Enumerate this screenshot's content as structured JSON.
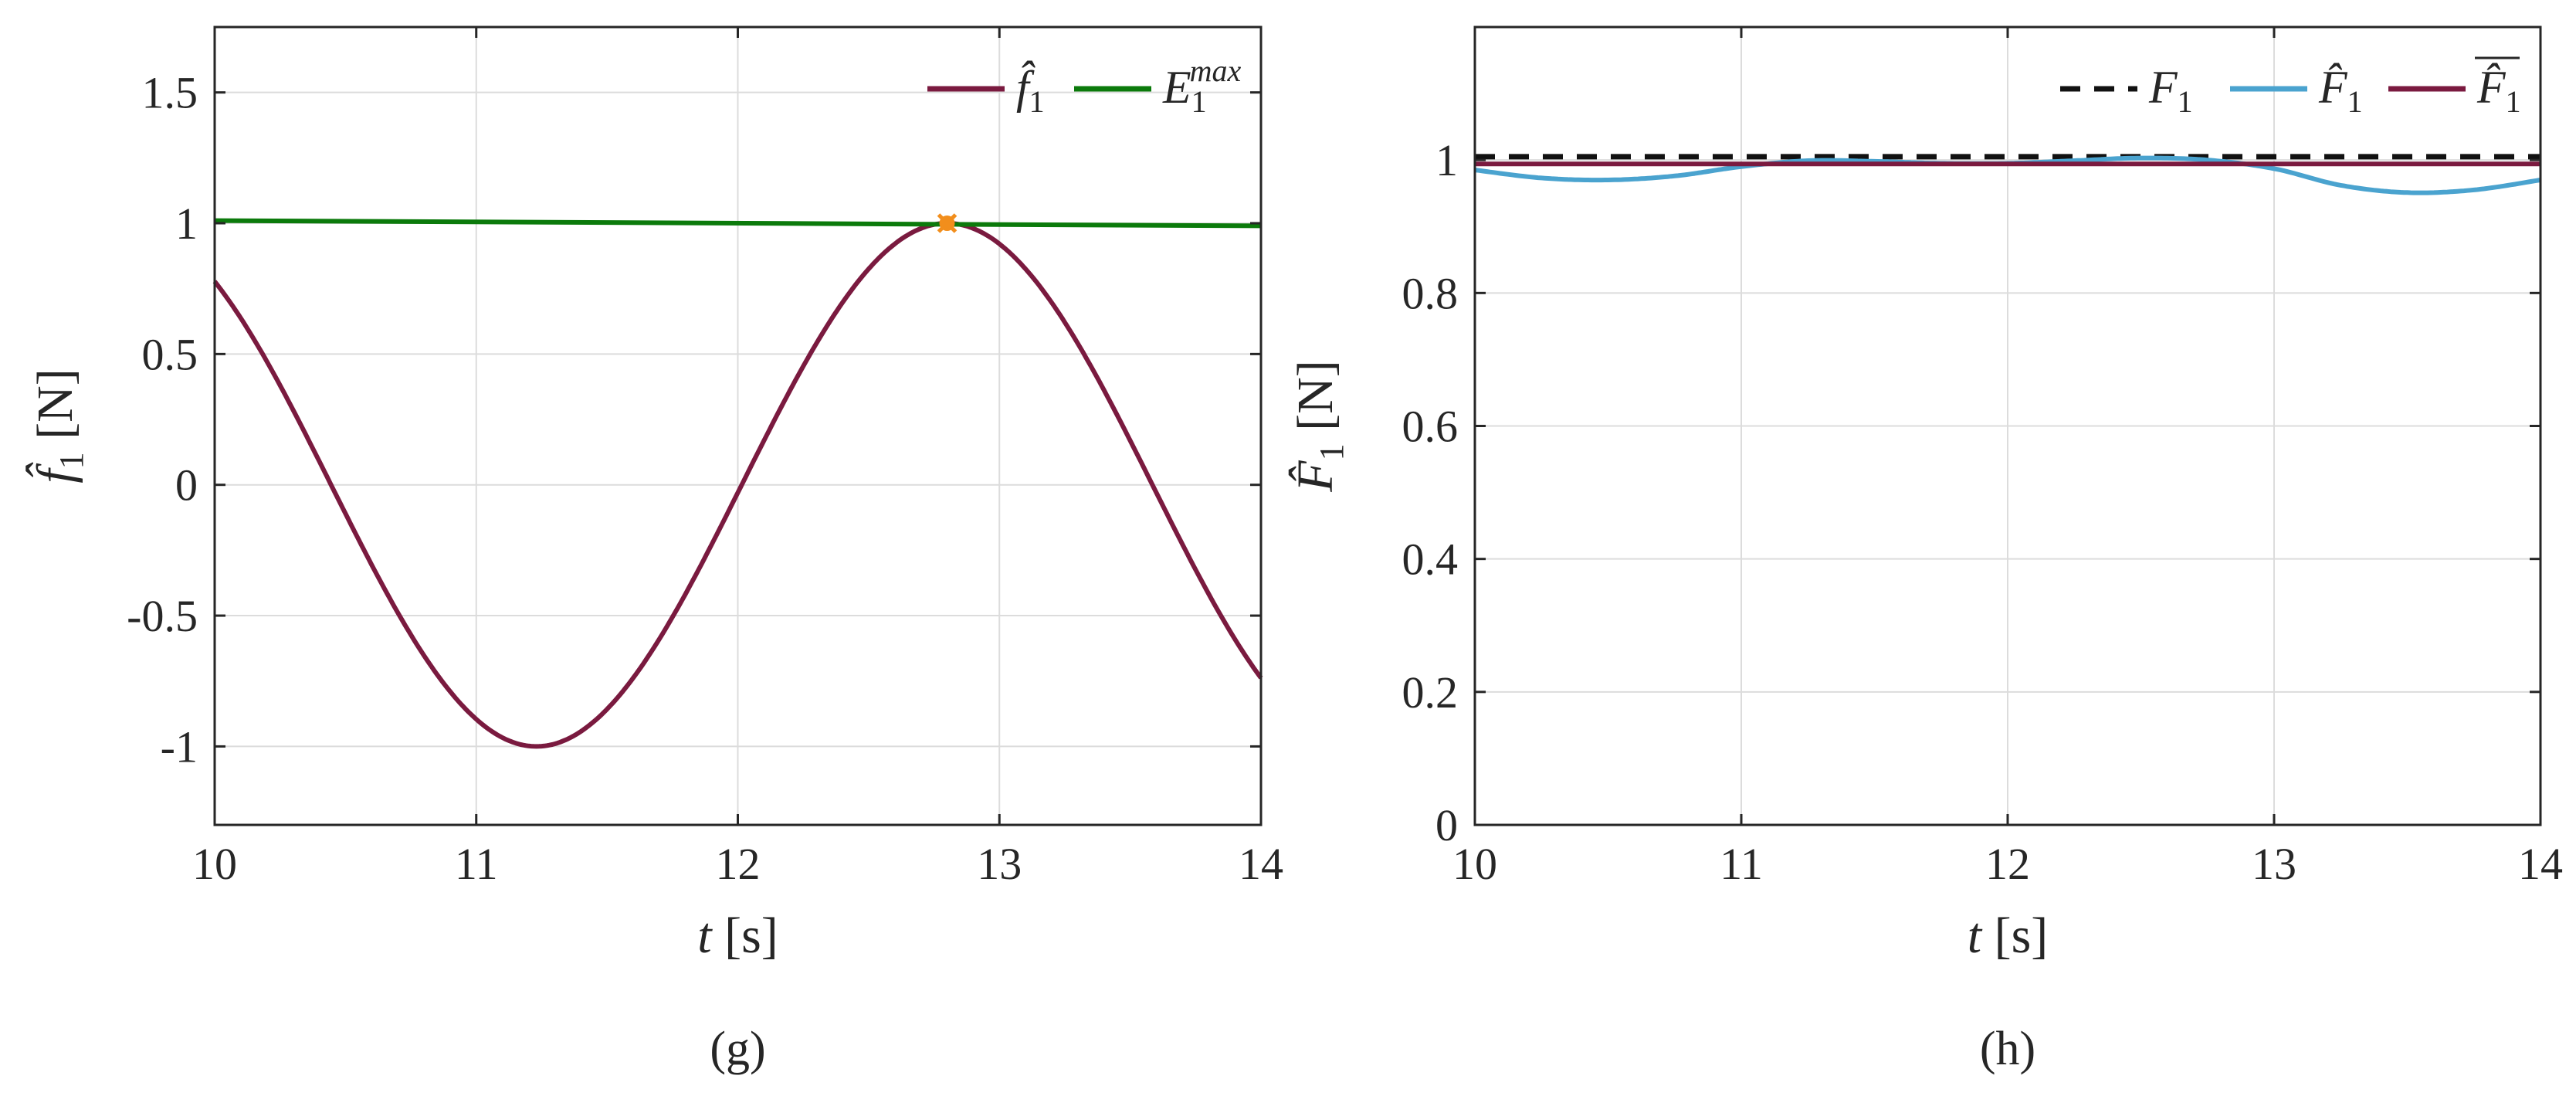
{
  "chart_data": [
    {
      "type": "line",
      "xlabel_var": "t",
      "xlabel_unit": "[s]",
      "ylabel_sym": "f̂",
      "ylabel_sub": "1",
      "ylabel_unit": "[N]",
      "xlim": [
        10,
        14
      ],
      "ylim": [
        -1.3,
        1.75
      ],
      "xticks": [
        10,
        11,
        12,
        13,
        14
      ],
      "xtick_labels": [
        "10",
        "11",
        "12",
        "13",
        "14"
      ],
      "yticks": [
        1.5,
        1,
        0.5,
        0,
        -0.5,
        -1
      ],
      "ytick_labels": [
        "1.5",
        "1",
        "0.5",
        "0",
        "-0.5",
        "-1"
      ],
      "grid": true,
      "legend_position": "top-right",
      "series": [
        {
          "name": "f̂1",
          "legend_main": "f̂",
          "legend_sub": "1",
          "legend_sup": "",
          "color": "#7a1a3f",
          "kind": "sine",
          "amplitude": 1.0,
          "period": 3.14,
          "peak_t": 12.8
        },
        {
          "name": "E1max",
          "legend_main": "E",
          "legend_sub": "1",
          "legend_sup": "max",
          "color": "#0b7a0b",
          "kind": "linear",
          "x": [
            10,
            14
          ],
          "y": [
            1.01,
            0.99
          ]
        }
      ],
      "marker": {
        "x": 12.8,
        "y": 1.0,
        "color": "#f28e1c"
      },
      "caption": "(g)"
    },
    {
      "type": "line",
      "xlabel_var": "t",
      "xlabel_unit": "[s]",
      "ylabel_sym": "F̂",
      "ylabel_sub": "1",
      "ylabel_unit": "[N]",
      "xlim": [
        10,
        14
      ],
      "ylim": [
        0,
        1.2
      ],
      "xticks": [
        10,
        11,
        12,
        13,
        14
      ],
      "xtick_labels": [
        "10",
        "11",
        "12",
        "13",
        "14"
      ],
      "yticks": [
        1,
        0.8,
        0.6,
        0.4,
        0.2,
        0
      ],
      "ytick_labels": [
        "1",
        "0.8",
        "0.6",
        "0.4",
        "0.2",
        "0"
      ],
      "grid": true,
      "legend_position": "top-right",
      "series": [
        {
          "name": "F1",
          "legend_main": "F",
          "legend_sub": "1",
          "color": "#111111",
          "dash": true,
          "kind": "linear",
          "x": [
            10,
            14
          ],
          "y": [
            1.005,
            1.005
          ]
        },
        {
          "name": "F̂1",
          "legend_main": "F̂",
          "legend_sub": "1",
          "color": "#4aa3cf",
          "kind": "points",
          "x": [
            10,
            10.25,
            10.5,
            10.75,
            11,
            11.25,
            11.5,
            11.75,
            12,
            12.25,
            12.5,
            12.75,
            13,
            13.25,
            13.5,
            13.75,
            14
          ],
          "y": [
            0.985,
            0.973,
            0.97,
            0.976,
            0.99,
            0.999,
            0.998,
            0.995,
            0.995,
            0.999,
            1.003,
            1.0,
            0.987,
            0.962,
            0.951,
            0.955,
            0.97
          ]
        },
        {
          "name": "F̂1bar",
          "legend_main": "F̂",
          "legend_sub": "1",
          "legend_bar": true,
          "color": "#7a1a3f",
          "kind": "points",
          "x": [
            10,
            10.5,
            11,
            11.5,
            12,
            12.5,
            13,
            13.5,
            14
          ],
          "y": [
            0.994,
            0.994,
            0.994,
            0.994,
            0.994,
            0.994,
            0.994,
            0.994,
            0.994
          ]
        }
      ],
      "caption": "(h)"
    }
  ]
}
